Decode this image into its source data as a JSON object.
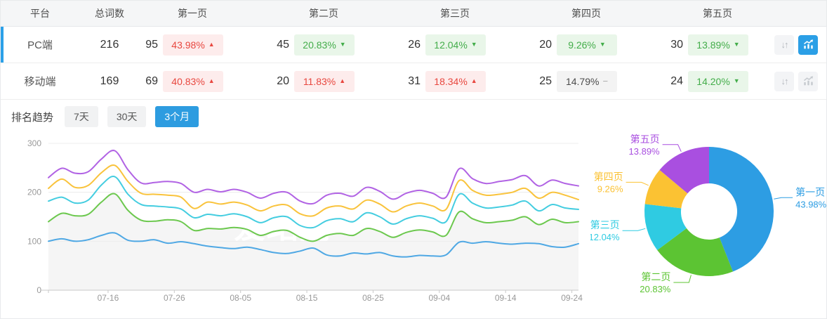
{
  "table": {
    "columns": [
      "平台",
      "总词数",
      "第一页",
      "第二页",
      "第三页",
      "第四页",
      "第五页"
    ],
    "rows": [
      {
        "platform": "PC端",
        "total": "216",
        "selected": true,
        "chart_active": true,
        "pages": [
          {
            "count": "95",
            "pct": "43.98%",
            "dir": "up",
            "arrow": "▲"
          },
          {
            "count": "45",
            "pct": "20.83%",
            "dir": "down",
            "arrow": "▼"
          },
          {
            "count": "26",
            "pct": "12.04%",
            "dir": "down",
            "arrow": "▼"
          },
          {
            "count": "20",
            "pct": "9.26%",
            "dir": "down",
            "arrow": "▼"
          },
          {
            "count": "30",
            "pct": "13.89%",
            "dir": "down",
            "arrow": "▼"
          }
        ]
      },
      {
        "platform": "移动端",
        "total": "169",
        "selected": false,
        "chart_active": false,
        "pages": [
          {
            "count": "69",
            "pct": "40.83%",
            "dir": "up",
            "arrow": "▲"
          },
          {
            "count": "20",
            "pct": "11.83%",
            "dir": "up",
            "arrow": "▲"
          },
          {
            "count": "31",
            "pct": "18.34%",
            "dir": "up",
            "arrow": "▲"
          },
          {
            "count": "25",
            "pct": "14.79%",
            "dir": "flat",
            "arrow": "−"
          },
          {
            "count": "24",
            "pct": "14.20%",
            "dir": "down",
            "arrow": "▼"
          }
        ]
      }
    ]
  },
  "trend": {
    "label": "排名趋势",
    "tabs": [
      {
        "label": "7天",
        "active": false
      },
      {
        "label": "30天",
        "active": false
      },
      {
        "label": "3个月",
        "active": true
      }
    ]
  },
  "watermark": "爱站网",
  "colors": {
    "accent_blue": "#2b9fe6",
    "up_red": "#e8473f",
    "down_green": "#43ad4a",
    "flat_gray": "#8a8a8a"
  },
  "chart_data": [
    {
      "type": "line",
      "title": "排名趋势（3个月）",
      "x_ticks": [
        "07-16",
        "07-26",
        "08-05",
        "08-15",
        "08-25",
        "09-04",
        "09-14",
        "09-24"
      ],
      "tick_pos": [
        0.1125,
        0.2375,
        0.3625,
        0.4875,
        0.6125,
        0.7375,
        0.8625,
        0.9875
      ],
      "ylim": [
        0,
        300
      ],
      "y_ticks": [
        0,
        100,
        200,
        300
      ],
      "grid": true,
      "legend": false,
      "series": [
        {
          "name": "第一页",
          "color": "#4fa8e4",
          "values": [
            100,
            105,
            100,
            103,
            112,
            117,
            102,
            100,
            103,
            96,
            99,
            95,
            90,
            87,
            85,
            88,
            83,
            77,
            75,
            80,
            86,
            72,
            70,
            76,
            74,
            77,
            70,
            68,
            71,
            70,
            72,
            98,
            96,
            99,
            96,
            94,
            96,
            95,
            89,
            88,
            95
          ]
        },
        {
          "name": "第二页",
          "color": "#6cc84e",
          "area": true,
          "area_color": "#f5f5f5",
          "values": [
            140,
            157,
            152,
            155,
            180,
            197,
            163,
            143,
            141,
            144,
            140,
            122,
            126,
            125,
            128,
            124,
            112,
            120,
            122,
            108,
            100,
            112,
            116,
            112,
            126,
            120,
            108,
            118,
            123,
            119,
            112,
            160,
            146,
            138,
            140,
            143,
            150,
            134,
            145,
            138,
            140
          ]
        },
        {
          "name": "第三页",
          "color": "#44cde0",
          "values": [
            182,
            190,
            178,
            184,
            215,
            232,
            196,
            175,
            172,
            170,
            166,
            148,
            155,
            152,
            156,
            150,
            138,
            148,
            150,
            132,
            128,
            142,
            146,
            140,
            158,
            150,
            135,
            146,
            152,
            147,
            140,
            196,
            178,
            168,
            170,
            174,
            182,
            162,
            175,
            168,
            165
          ]
        },
        {
          "name": "第四页",
          "color": "#f9c33c",
          "values": [
            208,
            227,
            210,
            214,
            240,
            255,
            222,
            198,
            196,
            194,
            190,
            167,
            180,
            176,
            180,
            174,
            162,
            172,
            174,
            156,
            152,
            168,
            172,
            166,
            184,
            176,
            160,
            172,
            178,
            172,
            165,
            224,
            204,
            194,
            196,
            200,
            208,
            188,
            200,
            194,
            185
          ]
        },
        {
          "name": "第五页",
          "color": "#b163e4",
          "values": [
            230,
            249,
            239,
            242,
            268,
            285,
            246,
            219,
            220,
            222,
            218,
            200,
            206,
            201,
            206,
            200,
            188,
            198,
            200,
            182,
            177,
            194,
            198,
            192,
            210,
            202,
            186,
            198,
            204,
            198,
            190,
            248,
            228,
            218,
            222,
            226,
            234,
            213,
            225,
            218,
            213
          ]
        }
      ]
    },
    {
      "type": "pie",
      "donut": true,
      "inner_radius_ratio": 0.435,
      "slices": [
        {
          "label": "第一页",
          "value": 43.98,
          "color": "#2d9de3"
        },
        {
          "label": "第二页",
          "value": 20.83,
          "color": "#5cc433"
        },
        {
          "label": "第三页",
          "value": 12.04,
          "color": "#2fcbe2"
        },
        {
          "label": "第四页",
          "value": 9.26,
          "color": "#fbc233"
        },
        {
          "label": "第五页",
          "value": 13.89,
          "color": "#a94fe0"
        }
      ]
    }
  ]
}
